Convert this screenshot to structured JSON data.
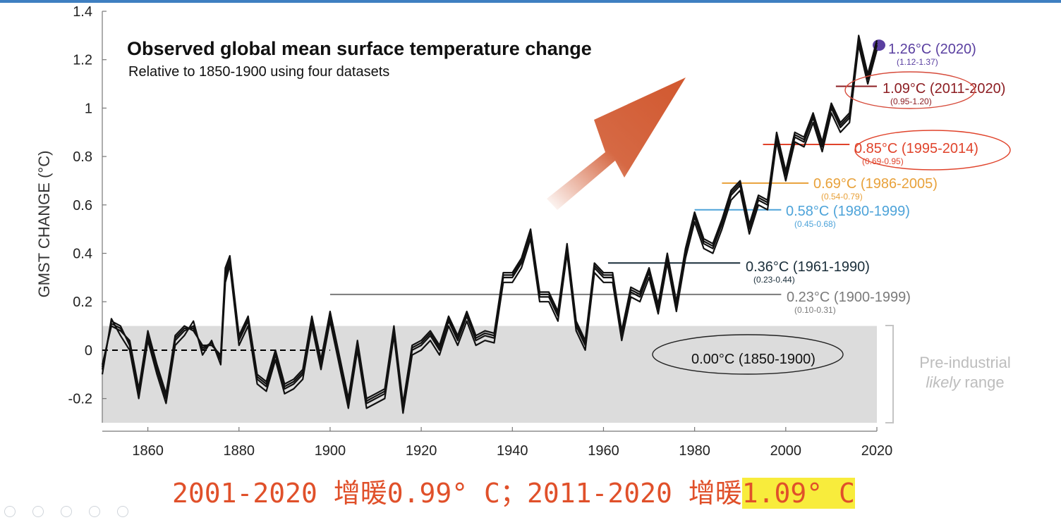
{
  "chart_data": {
    "type": "line",
    "title": "Observed global mean surface temperature change",
    "subtitle": "Relative to 1850-1900 using four datasets",
    "xlabel": "",
    "ylabel": "GMST CHANGE  (°C)",
    "xlim": [
      1850,
      2020
    ],
    "ylim": [
      -0.3,
      1.4
    ],
    "xticks": [
      1860,
      1880,
      1900,
      1920,
      1940,
      1960,
      1980,
      2000,
      2020
    ],
    "yticks": [
      -0.2,
      0,
      0.2,
      0.4,
      0.6,
      0.8,
      1,
      1.2,
      1.4
    ],
    "ytick_labels": [
      "-0.2",
      "0",
      "0.2",
      "0.4",
      "0.6",
      "0.8",
      "1",
      "1.2",
      "1.4"
    ],
    "grid": false,
    "preindustrial_band": {
      "y0": -0.3,
      "y1": 0.1,
      "label_line1": "Pre-industrial",
      "label_em": "likely",
      "label_rest": " range"
    },
    "x": [
      1850,
      1852,
      1854,
      1856,
      1858,
      1860,
      1862,
      1864,
      1866,
      1868,
      1870,
      1872,
      1874,
      1876,
      1877,
      1878,
      1880,
      1882,
      1884,
      1886,
      1888,
      1890,
      1892,
      1894,
      1896,
      1898,
      1900,
      1902,
      1904,
      1906,
      1908,
      1910,
      1912,
      1914,
      1916,
      1918,
      1920,
      1922,
      1924,
      1926,
      1928,
      1930,
      1932,
      1934,
      1936,
      1938,
      1940,
      1942,
      1944,
      1946,
      1948,
      1950,
      1952,
      1954,
      1956,
      1958,
      1960,
      1962,
      1964,
      1966,
      1968,
      1970,
      1972,
      1974,
      1976,
      1978,
      1980,
      1982,
      1984,
      1986,
      1988,
      1990,
      1992,
      1994,
      1996,
      1998,
      2000,
      2002,
      2004,
      2006,
      2008,
      2010,
      2012,
      2014,
      2016,
      2018,
      2020
    ],
    "series": [
      {
        "values": [
          -0.08,
          0.12,
          0.1,
          0.02,
          -0.18,
          0.06,
          -0.08,
          -0.2,
          0.04,
          0.08,
          0.1,
          0.0,
          0.03,
          -0.04,
          0.3,
          0.37,
          0.04,
          0.12,
          -0.12,
          -0.15,
          -0.02,
          -0.16,
          -0.14,
          -0.1,
          0.12,
          -0.06,
          0.14,
          -0.04,
          -0.22,
          0.02,
          -0.22,
          -0.2,
          -0.18,
          0.08,
          -0.24,
          0.0,
          0.02,
          0.06,
          0.0,
          0.12,
          0.04,
          0.14,
          0.04,
          0.06,
          0.05,
          0.3,
          0.3,
          0.36,
          0.48,
          0.22,
          0.22,
          0.14,
          0.42,
          0.1,
          0.02,
          0.34,
          0.3,
          0.3,
          0.06,
          0.24,
          0.22,
          0.32,
          0.17,
          0.38,
          0.18,
          0.4,
          0.55,
          0.44,
          0.42,
          0.52,
          0.64,
          0.68,
          0.5,
          0.62,
          0.6,
          0.88,
          0.72,
          0.88,
          0.86,
          0.96,
          0.84,
          1.0,
          0.92,
          0.96,
          1.28,
          1.12,
          1.26
        ]
      },
      {
        "values": [
          -0.06,
          0.1,
          0.08,
          0.04,
          -0.16,
          0.08,
          -0.06,
          -0.18,
          0.06,
          0.1,
          0.08,
          0.02,
          0.02,
          -0.02,
          0.34,
          0.39,
          0.06,
          0.14,
          -0.1,
          -0.13,
          0.0,
          -0.14,
          -0.12,
          -0.08,
          0.14,
          -0.04,
          0.16,
          -0.02,
          -0.2,
          0.04,
          -0.2,
          -0.18,
          -0.16,
          0.1,
          -0.22,
          0.02,
          0.04,
          0.08,
          0.02,
          0.14,
          0.06,
          0.16,
          0.06,
          0.08,
          0.07,
          0.32,
          0.32,
          0.38,
          0.5,
          0.24,
          0.24,
          0.16,
          0.44,
          0.12,
          0.04,
          0.36,
          0.32,
          0.32,
          0.08,
          0.26,
          0.24,
          0.34,
          0.19,
          0.4,
          0.2,
          0.42,
          0.57,
          0.46,
          0.44,
          0.54,
          0.66,
          0.7,
          0.52,
          0.64,
          0.62,
          0.9,
          0.74,
          0.9,
          0.88,
          0.98,
          0.86,
          1.02,
          0.94,
          0.98,
          1.3,
          1.14,
          1.28
        ]
      },
      {
        "values": [
          -0.1,
          0.13,
          0.06,
          0.0,
          -0.2,
          0.04,
          -0.1,
          -0.22,
          0.02,
          0.06,
          0.12,
          -0.02,
          0.04,
          -0.06,
          0.28,
          0.35,
          0.02,
          0.1,
          -0.14,
          -0.17,
          -0.04,
          -0.18,
          -0.16,
          -0.12,
          0.1,
          -0.08,
          0.12,
          -0.06,
          -0.24,
          0.0,
          -0.24,
          -0.22,
          -0.2,
          0.06,
          -0.26,
          -0.02,
          0.0,
          0.04,
          -0.02,
          0.1,
          0.02,
          0.12,
          0.02,
          0.04,
          0.03,
          0.28,
          0.28,
          0.34,
          0.46,
          0.2,
          0.2,
          0.12,
          0.4,
          0.08,
          0.0,
          0.32,
          0.28,
          0.28,
          0.04,
          0.22,
          0.2,
          0.3,
          0.15,
          0.36,
          0.16,
          0.38,
          0.53,
          0.42,
          0.4,
          0.5,
          0.62,
          0.66,
          0.48,
          0.6,
          0.58,
          0.86,
          0.7,
          0.86,
          0.84,
          0.94,
          0.82,
          0.98,
          0.9,
          0.94,
          1.26,
          1.1,
          1.24
        ]
      },
      {
        "values": [
          -0.07,
          0.11,
          0.09,
          0.03,
          -0.17,
          0.07,
          -0.07,
          -0.19,
          0.05,
          0.09,
          0.09,
          0.01,
          0.03,
          -0.03,
          0.32,
          0.38,
          0.05,
          0.13,
          -0.11,
          -0.14,
          -0.01,
          -0.15,
          -0.13,
          -0.09,
          0.13,
          -0.05,
          0.15,
          -0.03,
          -0.21,
          0.03,
          -0.21,
          -0.19,
          -0.17,
          0.09,
          -0.23,
          0.01,
          0.03,
          0.07,
          0.01,
          0.13,
          0.05,
          0.15,
          0.05,
          0.07,
          0.06,
          0.31,
          0.31,
          0.37,
          0.49,
          0.23,
          0.23,
          0.15,
          0.43,
          0.11,
          0.03,
          0.35,
          0.31,
          0.31,
          0.07,
          0.25,
          0.23,
          0.33,
          0.18,
          0.39,
          0.19,
          0.41,
          0.56,
          0.45,
          0.43,
          0.53,
          0.65,
          0.69,
          0.51,
          0.63,
          0.61,
          0.89,
          0.73,
          0.89,
          0.87,
          0.97,
          0.85,
          1.01,
          0.93,
          0.97,
          1.29,
          1.13,
          1.27
        ]
      }
    ],
    "period_means": [
      {
        "value": "0.00°C (1850-1900)",
        "range": "",
        "y": 0.0,
        "x0": 1850,
        "x1": 1900,
        "color": "#000000",
        "dashed": true
      },
      {
        "value": "0.23°C (1900-1999)",
        "range": "(0.10-0.31)",
        "y": 0.23,
        "x0": 1900,
        "x1": 1999,
        "color": "#7a7a7a"
      },
      {
        "value": "0.36°C (1961-1990)",
        "range": "(0.23-0.44)",
        "y": 0.36,
        "x0": 1961,
        "x1": 1990,
        "color": "#1a2e3a"
      },
      {
        "value": "0.58°C (1980-1999)",
        "range": "(0.45-0.68)",
        "y": 0.58,
        "x0": 1980,
        "x1": 1999,
        "color": "#4da3d9"
      },
      {
        "value": "0.69°C (1986-2005)",
        "range": "(0.54-0.79)",
        "y": 0.69,
        "x0": 1986,
        "x1": 2005,
        "color": "#e8a13a"
      },
      {
        "value": "0.85°C (1995-2014)",
        "range": "(0.69-0.95)",
        "y": 0.85,
        "x0": 1995,
        "x1": 2014,
        "color": "#e0432b"
      },
      {
        "value": "1.09°C (2011-2020)",
        "range": "(0.95-1.20)",
        "y": 1.09,
        "x0": 2011,
        "x1": 2020,
        "color": "#8c1d22"
      },
      {
        "value": "1.26°C (2020)",
        "range": "(1.12-1.37)",
        "y": 1.26,
        "x0": 2020,
        "x1": 2020,
        "color": "#5a3fa0",
        "marker": true
      }
    ]
  },
  "caption": {
    "part1": "2001-2020 增暖",
    "part1_value": "0.99° C",
    "separator": "；",
    "part2": "2011-2020 增暖",
    "part2_value": "1.09° C"
  },
  "colors": {
    "accent_arrow": "#d1582f",
    "caption": "#e0502a",
    "highlight": "#f8ec3c",
    "band": "#dcdcdc",
    "frame": "#3f7fc1"
  }
}
